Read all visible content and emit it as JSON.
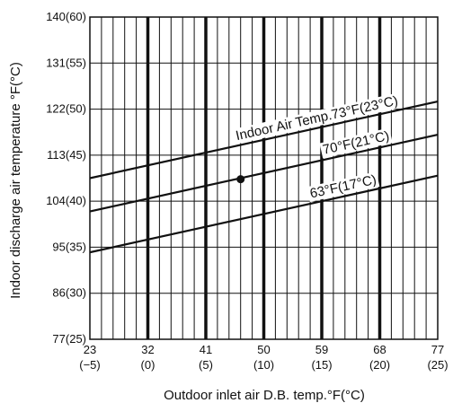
{
  "chart_data": {
    "type": "line",
    "title": "",
    "xlabel": "Outdoor inlet air D.B. temp.°F(°C)",
    "ylabel": "Indoor discharge air temperature °F(°C)",
    "xlim": [
      23,
      77
    ],
    "ylim": [
      77,
      140
    ],
    "grid": true,
    "x_ticks": [
      {
        "value": 23,
        "f": "23",
        "c": "(−5)"
      },
      {
        "value": 32,
        "f": "32",
        "c": "(0)"
      },
      {
        "value": 41,
        "f": "41",
        "c": "(5)"
      },
      {
        "value": 50,
        "f": "50",
        "c": "(10)"
      },
      {
        "value": 59,
        "f": "59",
        "c": "(15)"
      },
      {
        "value": 68,
        "f": "68",
        "c": "(20)"
      },
      {
        "value": 77,
        "f": "77",
        "c": "(25)"
      }
    ],
    "y_ticks": [
      {
        "value": 77,
        "label": "77(25)"
      },
      {
        "value": 86,
        "label": "86(30)"
      },
      {
        "value": 95,
        "label": "95(35)"
      },
      {
        "value": 104,
        "label": "104(40)"
      },
      {
        "value": 113,
        "label": "113(45)"
      },
      {
        "value": 122,
        "label": "122(50)"
      },
      {
        "value": 131,
        "label": "131(55)"
      },
      {
        "value": 140,
        "label": "140(60)"
      }
    ],
    "series": [
      {
        "name": "Indoor Air Temp.73°F(23°C)",
        "x": [
          23,
          77
        ],
        "y": [
          108.5,
          123.5
        ]
      },
      {
        "name": "70°F(21°C)",
        "x": [
          23,
          77
        ],
        "y": [
          102.0,
          117.0
        ]
      },
      {
        "name": "63°F(17°C)",
        "x": [
          23,
          77
        ],
        "y": [
          94.0,
          109.0
        ]
      }
    ],
    "marker": {
      "x": 46.4,
      "y": 108.3
    }
  }
}
